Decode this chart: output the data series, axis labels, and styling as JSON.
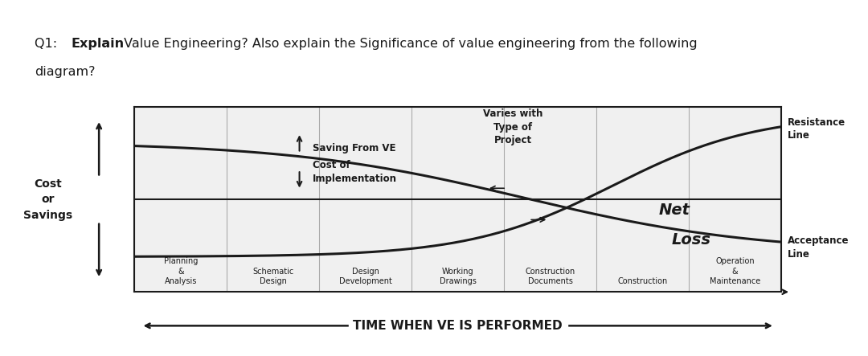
{
  "title_q1_prefix": "Q1: ",
  "title_bold_word": "Explain",
  "title_suffix": " Value Engineering? Also explain the Significance of value engineering from the following",
  "title_line2": "diagram?",
  "ylabel": "Cost\nor\nSavings",
  "xlabel_bottom": "TIME WHEN VE IS PERFORMED",
  "x_labels": [
    "Planning\n&\nAnalysis",
    "Schematic\nDesign",
    "Design\nDevelopment",
    "Working\nDrawings",
    "Construction\nDocuments",
    "Construction",
    "Operation\n&\nMaintenance"
  ],
  "annotation_saving_line1": "Saving From VE",
  "annotation_saving_line2": "Cost of",
  "annotation_saving_line3": "Implementation",
  "annotation_varies": "Varies with\nType of\nProject",
  "annotation_resistance": "Resistance\nLine",
  "annotation_acceptance": "Acceptance\nLine",
  "annotation_netloss_line1": "Net",
  "annotation_netloss_line2": "Loss",
  "bg_color": "#ffffff",
  "chart_bg": "#f0f0f0",
  "line_color": "#1a1a1a",
  "top_bar_color": "#1a1a1a",
  "grid_color": "#aaaaaa",
  "title_fontsize": 11.5,
  "label_fontsize": 7.0,
  "annot_fontsize": 8.5,
  "netloss_fontsize": 14
}
